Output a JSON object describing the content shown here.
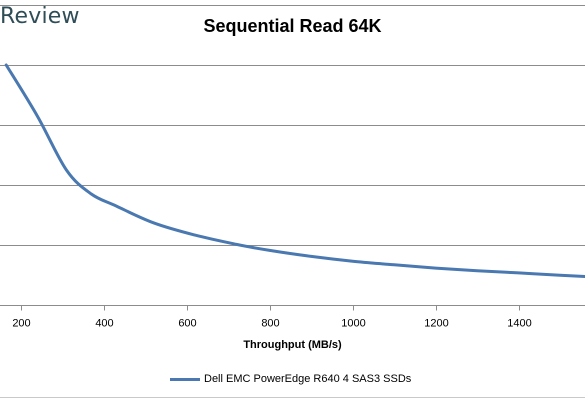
{
  "brand": {
    "text": "Review"
  },
  "chart_data": {
    "type": "line",
    "title": "Sequential Read 64K",
    "xlabel": "Throughput (MB/s)",
    "ylabel": "",
    "xlim": [
      150,
      1560
    ],
    "ylim": [
      0,
      10
    ],
    "x_ticks": [
      200,
      400,
      600,
      800,
      1000,
      1200,
      1400
    ],
    "y_ticks": [
      0,
      2,
      4,
      6,
      8,
      10
    ],
    "grid": "horizontal",
    "legend": "bottom",
    "series": [
      {
        "name": "Dell EMC PowerEdge R640 4 SAS3 SSDs",
        "color": "#4a78b0",
        "x": [
          165,
          240,
          310,
          370,
          430,
          520,
          620,
          720,
          800,
          900,
          1000,
          1100,
          1200,
          1300,
          1400,
          1500,
          1560
        ],
        "y": [
          8.0,
          6.3,
          4.5,
          3.7,
          3.3,
          2.74,
          2.33,
          2.02,
          1.82,
          1.62,
          1.46,
          1.34,
          1.23,
          1.14,
          1.07,
          0.99,
          0.95
        ]
      }
    ]
  }
}
